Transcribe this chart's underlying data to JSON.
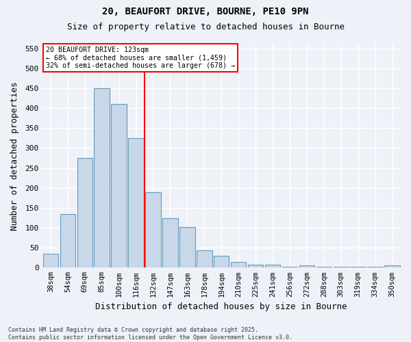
{
  "title_line1": "20, BEAUFORT DRIVE, BOURNE, PE10 9PN",
  "title_line2": "Size of property relative to detached houses in Bourne",
  "xlabel": "Distribution of detached houses by size in Bourne",
  "ylabel": "Number of detached properties",
  "categories": [
    "38sqm",
    "54sqm",
    "69sqm",
    "85sqm",
    "100sqm",
    "116sqm",
    "132sqm",
    "147sqm",
    "163sqm",
    "178sqm",
    "194sqm",
    "210sqm",
    "225sqm",
    "241sqm",
    "256sqm",
    "272sqm",
    "288sqm",
    "303sqm",
    "319sqm",
    "334sqm",
    "350sqm"
  ],
  "values": [
    34,
    135,
    275,
    450,
    410,
    325,
    190,
    124,
    101,
    44,
    30,
    15,
    7,
    8,
    3,
    5,
    3,
    2,
    2,
    3,
    5
  ],
  "bar_color": "#c8d8e8",
  "bar_edge_color": "#6699bb",
  "vline_pos": 5.5,
  "vline_color": "red",
  "annotation_title": "20 BEAUFORT DRIVE: 123sqm",
  "annotation_line1": "← 68% of detached houses are smaller (1,459)",
  "annotation_line2": "32% of semi-detached houses are larger (678) →",
  "annotation_box_color": "white",
  "annotation_box_edge": "red",
  "footnote1": "Contains HM Land Registry data © Crown copyright and database right 2025.",
  "footnote2": "Contains public sector information licensed under the Open Government Licence v3.0.",
  "ylim": [
    0,
    560
  ],
  "yticks": [
    0,
    50,
    100,
    150,
    200,
    250,
    300,
    350,
    400,
    450,
    500,
    550
  ],
  "background_color": "#eef2f8",
  "grid_color": "white",
  "figsize": [
    6.0,
    5.0
  ],
  "dpi": 100
}
